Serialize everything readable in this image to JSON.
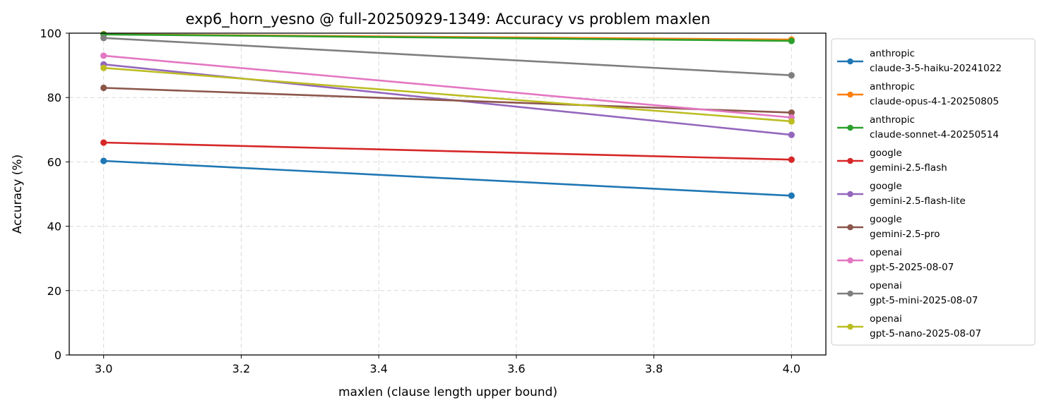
{
  "chart_data": {
    "type": "line",
    "title": "exp6_horn_yesno @ full-20250929-1349: Accuracy vs problem maxlen",
    "xlabel": "maxlen (clause length upper bound)",
    "ylabel": "Accuracy (%)",
    "x": [
      3.0,
      4.0
    ],
    "xlim": [
      2.95,
      4.05
    ],
    "ylim": [
      0,
      100
    ],
    "xticks": [
      "3.0",
      "3.2",
      "3.4",
      "3.6",
      "3.8",
      "4.0"
    ],
    "yticks": [
      "0",
      "20",
      "40",
      "60",
      "80",
      "100"
    ],
    "grid": true,
    "legend_position": "outside-right",
    "series": [
      {
        "name": "anthropic\nclaude-3-5-haiku-20241022",
        "provider": "anthropic",
        "model": "claude-3-5-haiku-20241022",
        "color": "#1f77b4",
        "values": [
          60.3,
          49.5
        ]
      },
      {
        "name": "anthropic\nclaude-opus-4-1-20250805",
        "provider": "anthropic",
        "model": "claude-opus-4-1-20250805",
        "color": "#ff7f0e",
        "values": [
          99.7,
          98.0
        ]
      },
      {
        "name": "anthropic\nclaude-sonnet-4-20250514",
        "provider": "anthropic",
        "model": "claude-sonnet-4-20250514",
        "color": "#2ca02c",
        "values": [
          99.6,
          97.6
        ]
      },
      {
        "name": "google\ngemini-2.5-flash",
        "provider": "google",
        "model": "gemini-2.5-flash",
        "color": "#d62728",
        "values": [
          66.0,
          60.7
        ]
      },
      {
        "name": "google\ngemini-2.5-flash-lite",
        "provider": "google",
        "model": "gemini-2.5-flash-lite",
        "color": "#9467bd",
        "values": [
          90.3,
          68.4
        ]
      },
      {
        "name": "google\ngemini-2.5-pro",
        "provider": "google",
        "model": "gemini-2.5-pro",
        "color": "#8c564b",
        "values": [
          83.0,
          75.3
        ]
      },
      {
        "name": "openai\ngpt-5-2025-08-07",
        "provider": "openai",
        "model": "gpt-5-2025-08-07",
        "color": "#e377c2",
        "values": [
          93.0,
          73.8
        ]
      },
      {
        "name": "openai\ngpt-5-mini-2025-08-07",
        "provider": "openai",
        "model": "gpt-5-mini-2025-08-07",
        "color": "#7f7f7f",
        "values": [
          98.5,
          86.9
        ]
      },
      {
        "name": "openai\ngpt-5-nano-2025-08-07",
        "provider": "openai",
        "model": "gpt-5-nano-2025-08-07",
        "color": "#bcbd22",
        "values": [
          89.2,
          72.6
        ]
      }
    ]
  }
}
